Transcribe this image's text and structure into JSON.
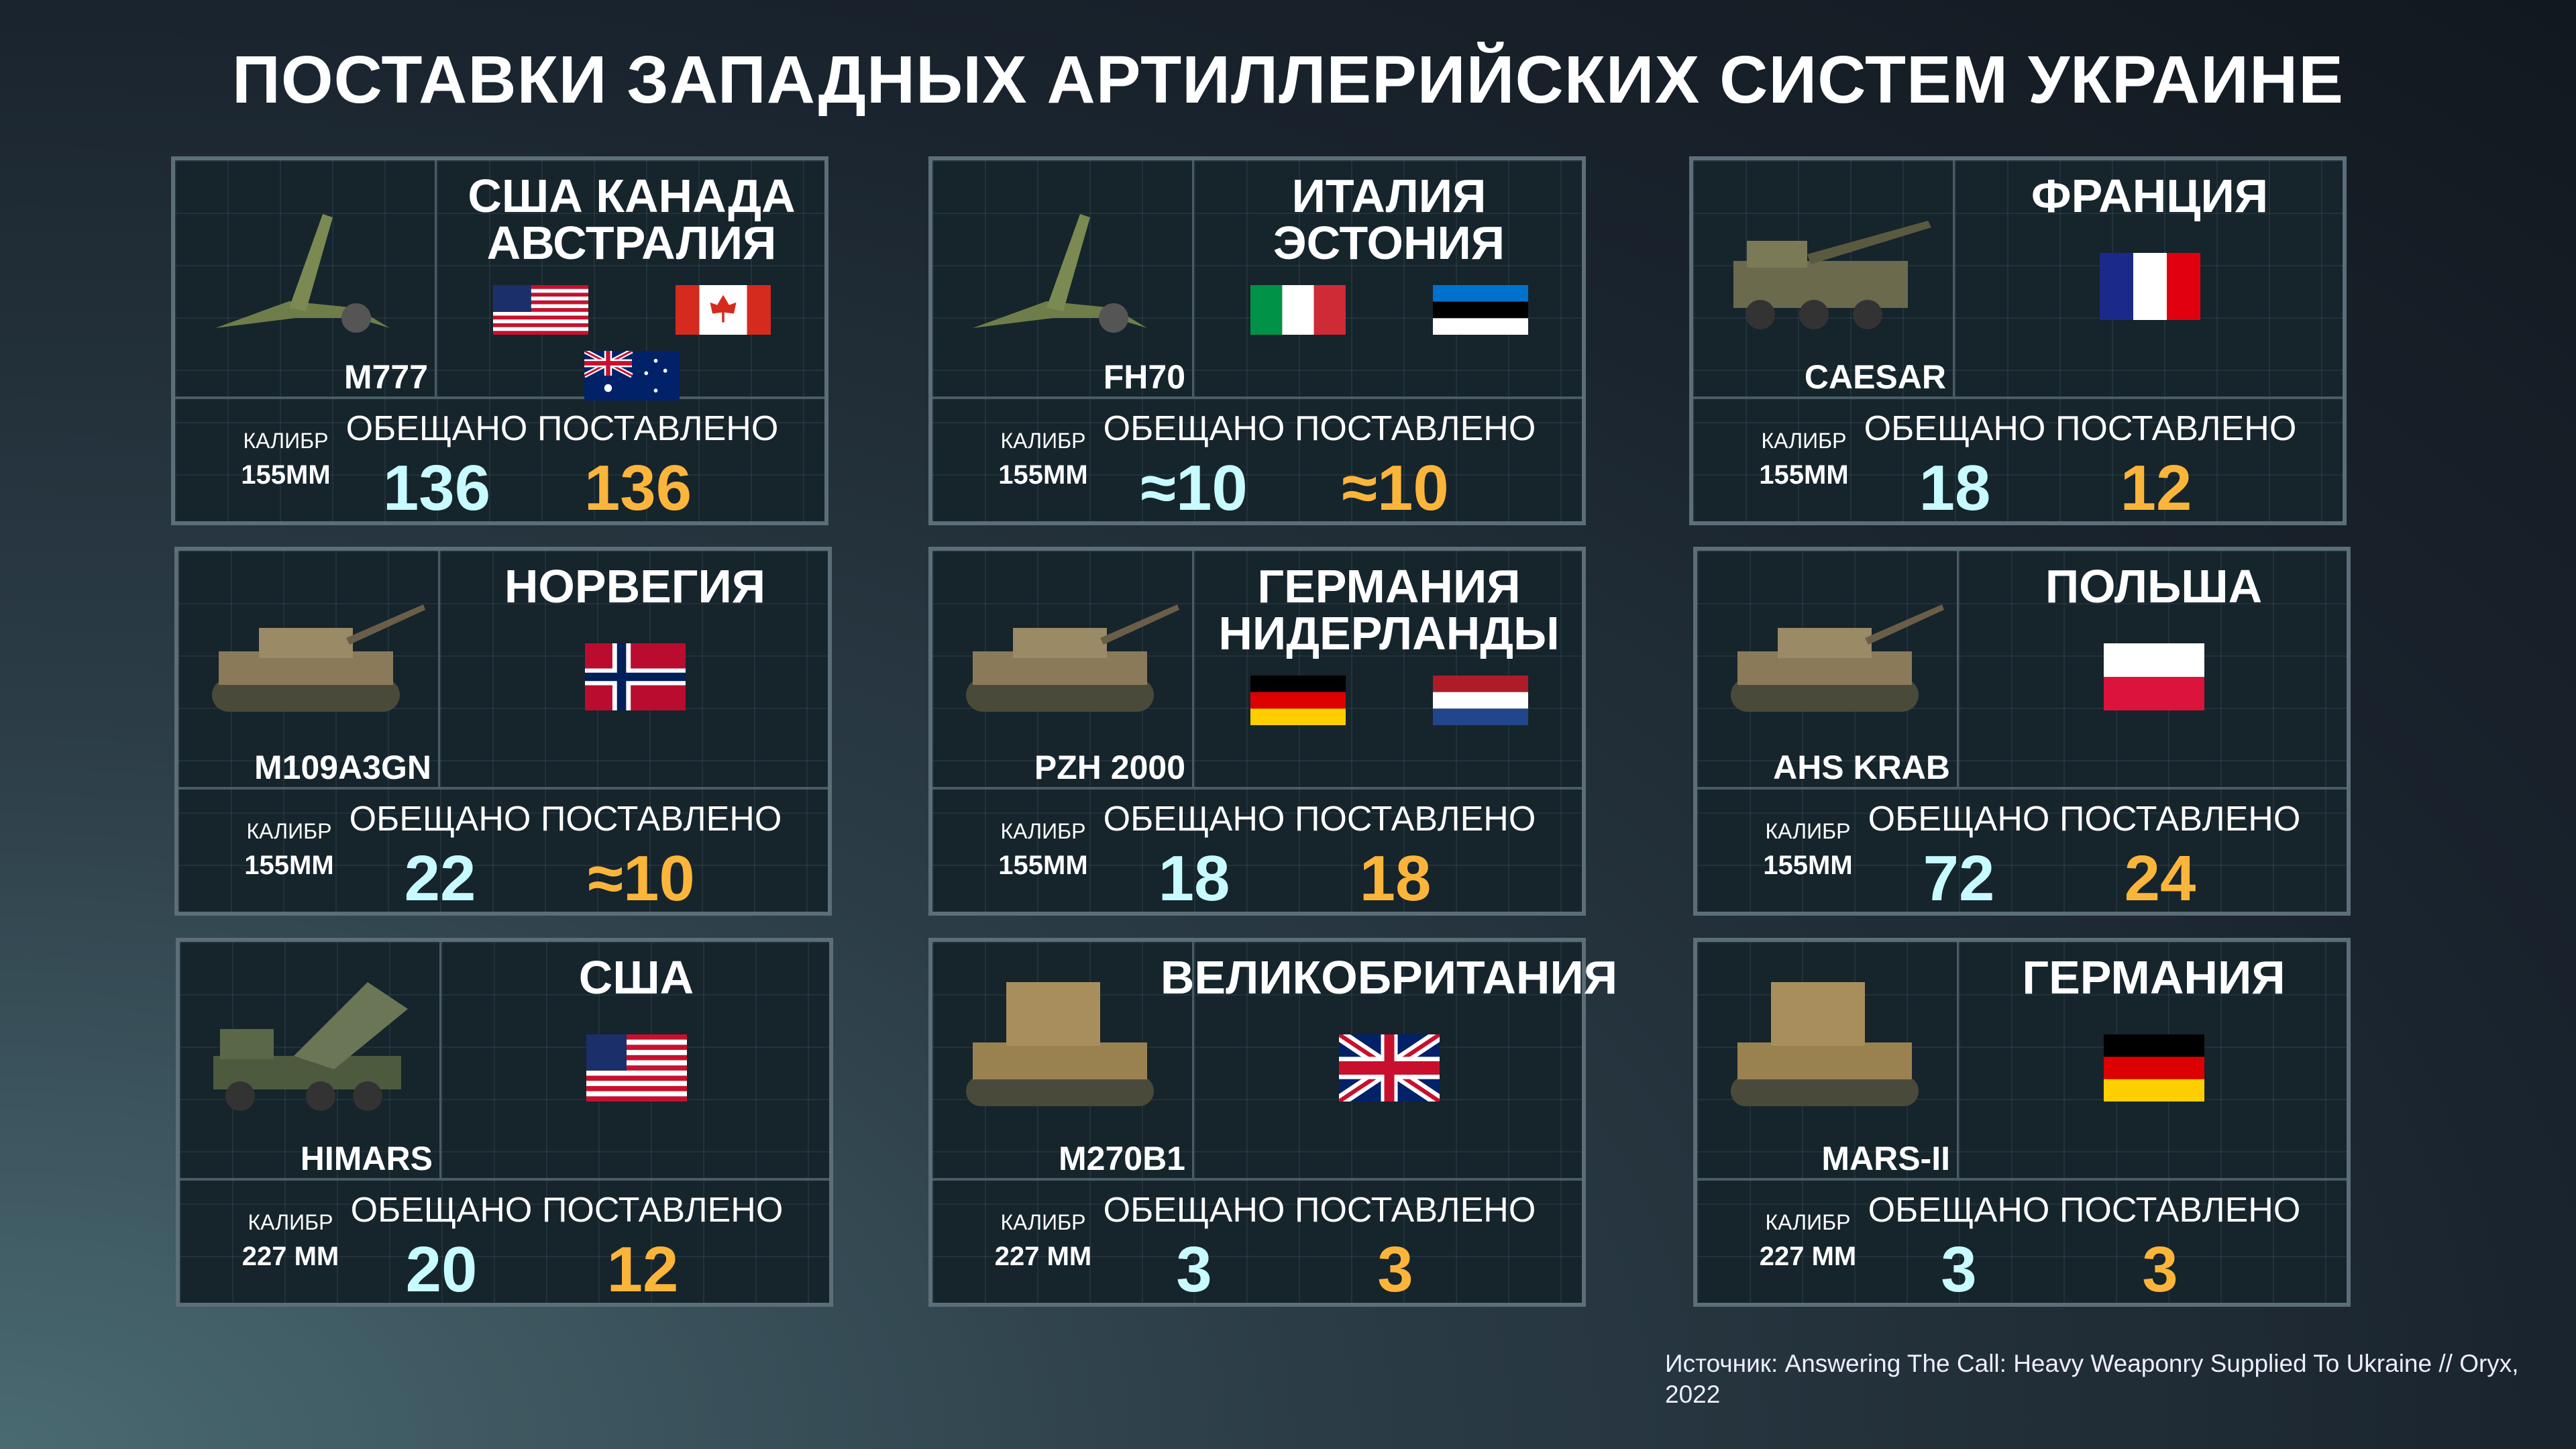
{
  "title": "ПОСТАВКИ ЗАПАДНЫХ АРТИЛЛЕРИЙСКИХ СИСТЕМ УКРАИНЕ",
  "labels": {
    "caliber": "КАЛИБР",
    "promised": "ОБЕЩАНО",
    "delivered": "ПОСТАВЛЕНО"
  },
  "colors": {
    "promised": "#c8fbff",
    "delivered": "#fcb53b",
    "card_border": "#5c6e78"
  },
  "cards": [
    {
      "model": "M777",
      "country": "США  КАНАДА\nАВСТРАЛИЯ",
      "flags": [
        "usa",
        "canada",
        "australia"
      ],
      "caliber": "155MM",
      "promised": "136",
      "delivered": "136",
      "weapon": "towed-howitzer"
    },
    {
      "model": "FH70",
      "country": "ИТАЛИЯ\nЭСТОНИЯ",
      "flags": [
        "italy",
        "estonia"
      ],
      "caliber": "155MM",
      "promised": "≈10",
      "delivered": "≈10",
      "weapon": "towed-howitzer"
    },
    {
      "model": "CAESAR",
      "country": "ФРАНЦИЯ",
      "flags": [
        "france"
      ],
      "caliber": "155MM",
      "promised": "18",
      "delivered": "12",
      "weapon": "truck-howitzer"
    },
    {
      "model": "M109A3GN",
      "country": "НОРВЕГИЯ",
      "flags": [
        "norway"
      ],
      "caliber": "155MM",
      "promised": "22",
      "delivered": "≈10",
      "weapon": "tracked-howitzer"
    },
    {
      "model": "PZH 2000",
      "country": "ГЕРМАНИЯ\nНИДЕРЛАНДЫ",
      "flags": [
        "germany",
        "netherlands"
      ],
      "caliber": "155MM",
      "promised": "18",
      "delivered": "18",
      "weapon": "tracked-howitzer"
    },
    {
      "model": "AHS KRAB",
      "country": "ПОЛЬША",
      "flags": [
        "poland"
      ],
      "caliber": "155MM",
      "promised": "72",
      "delivered": "24",
      "weapon": "tracked-howitzer"
    },
    {
      "model": "HIMARS",
      "country": "США",
      "flags": [
        "usa"
      ],
      "caliber": "227 MM",
      "promised": "20",
      "delivered": "12",
      "weapon": "truck-rocket-launcher"
    },
    {
      "model": "M270B1",
      "country": "ВЕЛИКОБРИТАНИЯ",
      "flags": [
        "uk"
      ],
      "caliber": "227 MM",
      "promised": "3",
      "delivered": "3",
      "weapon": "tracked-rocket-launcher"
    },
    {
      "model": "MARS-II",
      "country": "ГЕРМАНИЯ",
      "flags": [
        "germany"
      ],
      "caliber": "227 MM",
      "promised": "3",
      "delivered": "3",
      "weapon": "tracked-rocket-launcher"
    }
  ],
  "source": "Источник: Answering The Call: Heavy Weaponry Supplied To Ukraine // Oryx, 2022"
}
